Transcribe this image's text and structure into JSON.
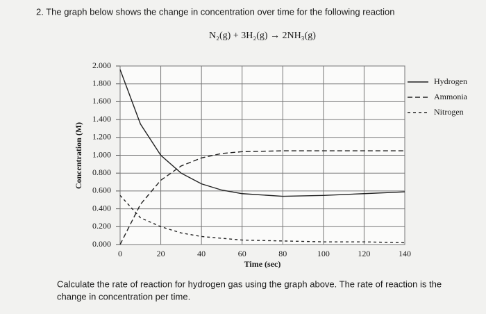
{
  "question": "2. The graph below shows the change in concentration over time for the following reaction",
  "instruction": [
    "Calculate the rate of reaction for hydrogen gas using the graph above. The rate of reaction is the",
    "change in concentration per time."
  ],
  "chart_data": {
    "type": "line",
    "subtitle": "N₂(g) + 3H₂(g) → 2NH₃(g)",
    "xlabel": "Time (sec)",
    "ylabel": "Concentration (M)",
    "x": [
      0,
      10,
      20,
      30,
      40,
      50,
      60,
      80,
      100,
      120,
      140
    ],
    "series": [
      {
        "name": "Hydrogen",
        "color": "#222222",
        "line_style": "solid",
        "values": [
          1.96,
          1.35,
          1.0,
          0.8,
          0.68,
          0.61,
          0.57,
          0.54,
          0.55,
          0.57,
          0.59
        ]
      },
      {
        "name": "Ammonia",
        "color": "#222222",
        "line_style": "long-dash",
        "values": [
          0,
          0.45,
          0.72,
          0.88,
          0.97,
          1.02,
          1.04,
          1.05,
          1.05,
          1.05,
          1.05
        ]
      },
      {
        "name": "Nitrogen",
        "color": "#222222",
        "line_style": "short-dash",
        "values": [
          0.55,
          0.3,
          0.2,
          0.13,
          0.09,
          0.07,
          0.05,
          0.04,
          0.03,
          0.03,
          0.02
        ]
      }
    ],
    "xlim": [
      0,
      140
    ],
    "xticks": [
      0,
      20,
      40,
      60,
      80,
      100,
      120,
      140
    ],
    "ylim": [
      0,
      2
    ],
    "yticks": [
      {
        "value": 0,
        "label": "0.000"
      },
      {
        "value": 0.2,
        "label": "0.200"
      },
      {
        "value": 0.4,
        "label": "0.400"
      },
      {
        "value": 0.6,
        "label": "0.600"
      },
      {
        "value": 0.8,
        "label": "0.800"
      },
      {
        "value": 1.0,
        "label": "1.000"
      },
      {
        "value": 1.2,
        "label": "1.200"
      },
      {
        "value": 1.4,
        "label": "1.400"
      },
      {
        "value": 1.6,
        "label": "1.600"
      },
      {
        "value": 1.8,
        "label": "1.800"
      },
      {
        "value": 2.0,
        "label": "2.000"
      }
    ],
    "grid": true,
    "legend": "right"
  }
}
